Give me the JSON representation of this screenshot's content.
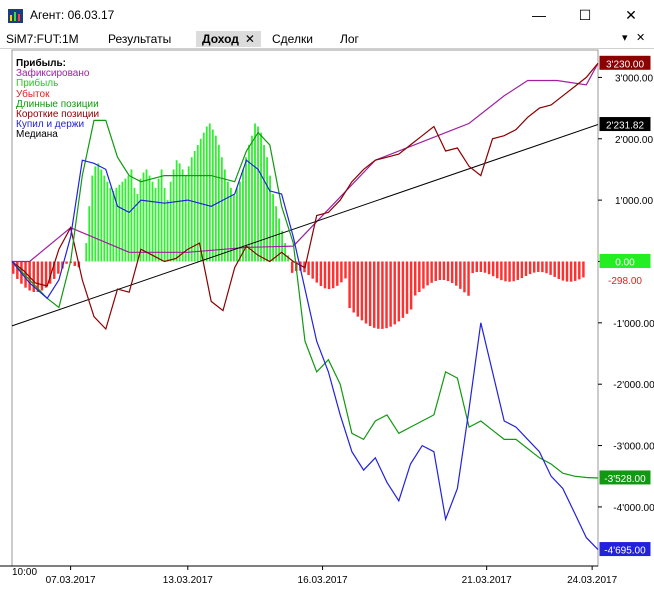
{
  "window": {
    "title": "Агент: 06.03.17",
    "controls": {
      "minimize": "—",
      "maximize": "☐",
      "close": "✕"
    }
  },
  "tabs": [
    {
      "label": "SiM7:FUT:1M",
      "active": false
    },
    {
      "label": "Результаты",
      "active": false
    },
    {
      "label": "Доход",
      "active": true
    },
    {
      "label": "Сделки",
      "active": false
    },
    {
      "label": "Лог",
      "active": false
    }
  ],
  "tabs_menu_icon": "chevron-down-icon",
  "tabs_close_icon": "close-icon",
  "legend": {
    "title": "Прибыль:",
    "items": [
      {
        "label": "Зафиксировано",
        "color": "#a020a0"
      },
      {
        "label": "Прибыль",
        "color": "#22cc22"
      },
      {
        "label": "Убыток",
        "color": "#e02020"
      },
      {
        "label": "Длинные позиции",
        "color": "#119911"
      },
      {
        "label": "Короткие позиции",
        "color": "#8b0000"
      },
      {
        "label": "Купил и держи",
        "color": "#2222dd"
      },
      {
        "label": "Медиана",
        "color": "#000000"
      }
    ]
  },
  "chart_data": {
    "type": "line",
    "x_labels": [
      "07.03.2017",
      "13.03.2017",
      "16.03.2017",
      "21.03.2017",
      "24.03.2017"
    ],
    "x_start_label": "10:00",
    "y_ticks": [
      3000,
      2000,
      1000,
      0,
      -1000,
      -2000,
      -3000,
      -4000
    ],
    "y_tick_labels": [
      "3'000.00",
      "2'000.00",
      "1'000.00",
      "0.00",
      "-1'000.00",
      "-2'000.00",
      "-3'000.00",
      "-4'000.00"
    ],
    "ylim": [
      -4800,
      3300
    ],
    "value_tags": [
      {
        "value": 3230,
        "label": "3'230.00",
        "bg": "#8b0000",
        "fg": "#ffffff"
      },
      {
        "value": 2231.82,
        "label": "2'231.82",
        "bg": "#000000",
        "fg": "#ffffff"
      },
      {
        "value": 0,
        "label": "0.00",
        "bg": "#22ee22",
        "fg": "#ffffff"
      },
      {
        "value": -298,
        "label": "-298.00",
        "bg": "#ffffff",
        "fg": "#e02020"
      },
      {
        "value": -3528,
        "label": "-3'528.00",
        "bg": "#119911",
        "fg": "#ffffff"
      },
      {
        "value": -4695,
        "label": "-4'695.00",
        "bg": "#2222dd",
        "fg": "#ffffff"
      }
    ],
    "series": [
      {
        "name": "Зафиксировано",
        "color": "#a020a0",
        "x": [
          0,
          0.03,
          0.1,
          0.2,
          0.3,
          0.4,
          0.48,
          0.55,
          0.62,
          0.7,
          0.78,
          0.84,
          0.88,
          0.93,
          0.98,
          1
        ],
        "values": [
          0,
          0,
          550,
          150,
          150,
          230,
          250,
          950,
          1650,
          1950,
          2250,
          2700,
          2950,
          2950,
          2880,
          3230
        ]
      },
      {
        "name": "Медиана",
        "color": "#000000",
        "x": [
          0,
          1
        ],
        "values": [
          -1050,
          2231.82
        ]
      },
      {
        "name": "Короткие позиции",
        "color": "#8b0000",
        "x": [
          0,
          0.02,
          0.04,
          0.06,
          0.08,
          0.1,
          0.12,
          0.14,
          0.16,
          0.18,
          0.2,
          0.22,
          0.24,
          0.26,
          0.28,
          0.3,
          0.32,
          0.34,
          0.36,
          0.38,
          0.4,
          0.42,
          0.44,
          0.46,
          0.48,
          0.5,
          0.52,
          0.54,
          0.56,
          0.58,
          0.6,
          0.62,
          0.64,
          0.66,
          0.68,
          0.7,
          0.72,
          0.74,
          0.76,
          0.78,
          0.8,
          0.82,
          0.84,
          0.86,
          0.88,
          0.9,
          0.92,
          0.94,
          0.96,
          0.98,
          1
        ],
        "values": [
          0,
          -150,
          -350,
          -400,
          200,
          550,
          -300,
          -900,
          -1100,
          -450,
          -500,
          200,
          100,
          0,
          50,
          200,
          300,
          -650,
          -800,
          -100,
          250,
          100,
          0,
          150,
          0,
          -100,
          750,
          800,
          1000,
          1300,
          1500,
          1650,
          1700,
          1750,
          1900,
          2050,
          2200,
          1800,
          1850,
          1550,
          1400,
          2000,
          2050,
          2150,
          2350,
          2500,
          2550,
          2700,
          2850,
          3000,
          3230
        ]
      },
      {
        "name": "Длинные позиции",
        "color": "#119911",
        "x": [
          0,
          0.03,
          0.06,
          0.08,
          0.1,
          0.12,
          0.14,
          0.16,
          0.18,
          0.2,
          0.22,
          0.26,
          0.3,
          0.34,
          0.38,
          0.4,
          0.42,
          0.44,
          0.46,
          0.48,
          0.5,
          0.52,
          0.54,
          0.56,
          0.58,
          0.6,
          0.62,
          0.64,
          0.66,
          0.68,
          0.7,
          0.72,
          0.74,
          0.76,
          0.78,
          0.8,
          0.82,
          0.84,
          0.86,
          0.88,
          0.9,
          0.92,
          0.94,
          0.96,
          0.98,
          1
        ],
        "values": [
          0,
          -300,
          -600,
          -750,
          0,
          1400,
          2300,
          2300,
          1700,
          1400,
          1300,
          1400,
          1400,
          1400,
          1300,
          1800,
          2100,
          1900,
          900,
          300,
          -1300,
          -1800,
          -1600,
          -2000,
          -2800,
          -2900,
          -2600,
          -2500,
          -2800,
          -2700,
          -2600,
          -2500,
          -1800,
          -1900,
          -2700,
          -2600,
          -2750,
          -2900,
          -2900,
          -3050,
          -3200,
          -3300,
          -3450,
          -3500,
          -3520,
          -3528
        ]
      },
      {
        "name": "Купил и держи",
        "color": "#2222dd",
        "x": [
          0,
          0.03,
          0.06,
          0.08,
          0.1,
          0.12,
          0.14,
          0.16,
          0.18,
          0.2,
          0.22,
          0.26,
          0.3,
          0.34,
          0.38,
          0.4,
          0.42,
          0.44,
          0.46,
          0.48,
          0.5,
          0.52,
          0.54,
          0.56,
          0.58,
          0.6,
          0.62,
          0.64,
          0.66,
          0.68,
          0.7,
          0.72,
          0.74,
          0.76,
          0.78,
          0.8,
          0.82,
          0.84,
          0.86,
          0.88,
          0.9,
          0.92,
          0.94,
          0.96,
          0.98,
          1
        ],
        "values": [
          0,
          -350,
          -600,
          -300,
          400,
          1650,
          1600,
          1500,
          900,
          800,
          1000,
          950,
          1000,
          900,
          1100,
          1650,
          1500,
          1150,
          1100,
          400,
          -450,
          -1300,
          -1800,
          -2500,
          -3100,
          -3400,
          -3200,
          -3600,
          -3900,
          -3300,
          -3000,
          -3100,
          -4200,
          -3700,
          -2400,
          -1000,
          -1800,
          -2600,
          -2700,
          -2900,
          -3100,
          -3500,
          -3700,
          -4100,
          -4500,
          -4695
        ]
      }
    ],
    "bars": {
      "x_range": [
        0.12,
        0.48
      ],
      "values": [
        0,
        300,
        900,
        1400,
        1550,
        1600,
        1500,
        1400,
        1300,
        1200,
        1150,
        1200,
        1250,
        1300,
        1350,
        1400,
        1500,
        1200,
        1100,
        1350,
        1450,
        1500,
        1400,
        1300,
        1200,
        1350,
        1500,
        1200,
        1000,
        1300,
        1500,
        1650,
        1600,
        1500,
        1400,
        1550,
        1700,
        1800,
        1900,
        2000,
        2100,
        2200,
        2250,
        2150,
        2050,
        1900,
        1700,
        1500,
        1300,
        1200,
        1100,
        1200,
        1300,
        1500,
        1700,
        1900,
        2050,
        2250,
        2200,
        2100,
        1900,
        1700,
        1400,
        1100,
        900,
        700,
        500,
        300,
        100,
        0
      ],
      "neg_x_range": [
        0.0,
        0.98
      ],
      "neg_values_note": "drawdown"
    }
  }
}
